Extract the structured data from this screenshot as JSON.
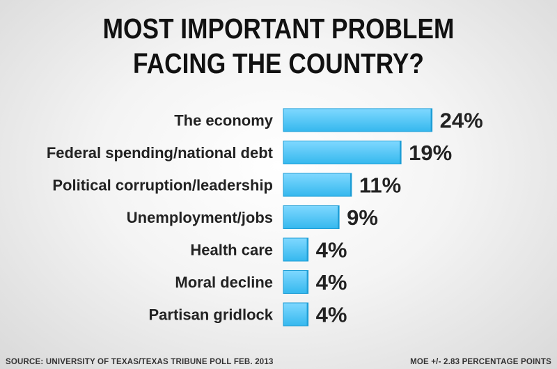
{
  "title_lines": [
    "MOST IMPORTANT PROBLEM",
    "FACING THE COUNTRY?"
  ],
  "footer": {
    "source": "SOURCE: UNIVERSITY OF TEXAS/TEXAS TRIBUNE POLL FEB. 2013",
    "moe": "MOE +/- 2.83 PERCENTAGE POINTS"
  },
  "colors": {
    "bar_top": "#7fd8ff",
    "bar_bottom": "#35b8ee",
    "bar_edge": "#1e9ed6",
    "text": "#222222"
  },
  "chart_data": {
    "type": "bar",
    "orientation": "horizontal",
    "title": "MOST IMPORTANT PROBLEM FACING THE COUNTRY?",
    "categories": [
      "The economy",
      "Federal spending/national debt",
      "Political corruption/leadership",
      "Unemployment/jobs",
      "Health care",
      "Moral decline",
      "Partisan gridlock"
    ],
    "values": [
      24,
      19,
      11,
      9,
      4,
      4,
      4
    ],
    "value_labels": [
      "24%",
      "19%",
      "11%",
      "9%",
      "4%",
      "4%",
      "4%"
    ],
    "unit": "%",
    "grid": false,
    "legend": "none"
  }
}
